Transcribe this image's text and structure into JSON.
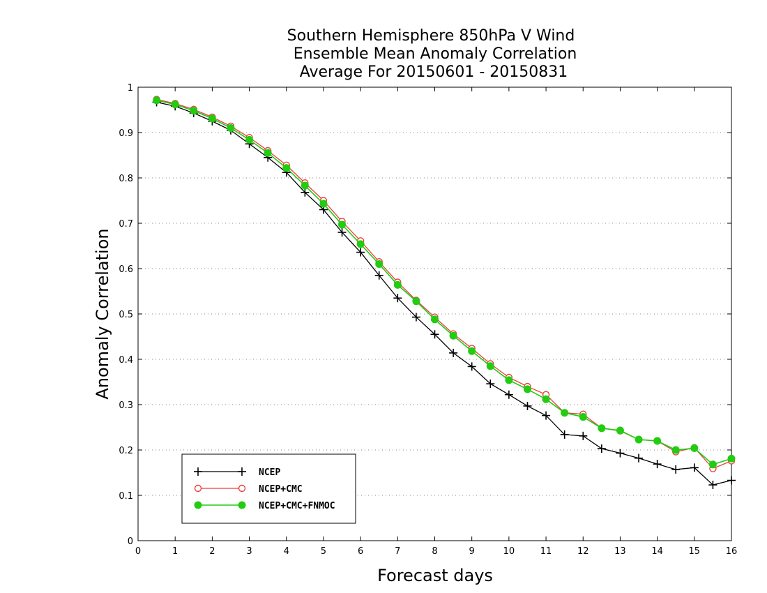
{
  "chart_data": {
    "type": "line",
    "title": [
      "Southern Hemisphere 850hPa V Wind",
      "Ensemble Mean Anomaly Correlation",
      "Average For 20150601 - 20150831"
    ],
    "xlabel": "Forecast days",
    "ylabel": "Anomaly Correlation",
    "xlim": [
      0,
      16
    ],
    "ylim": [
      0,
      1
    ],
    "xticks": [
      "0",
      "1",
      "2",
      "3",
      "4",
      "5",
      "6",
      "7",
      "8",
      "9",
      "10",
      "11",
      "12",
      "13",
      "14",
      "15",
      "16"
    ],
    "yticks": [
      "0",
      "0.1",
      "0.2",
      "0.3",
      "0.4",
      "0.5",
      "0.6",
      "0.7",
      "0.8",
      "0.9",
      "1"
    ],
    "grid": "horizontal dotted",
    "legend_position": "bottom-left",
    "x": [
      0.5,
      1,
      1.5,
      2,
      2.5,
      3,
      3.5,
      4,
      4.5,
      5,
      5.5,
      6,
      6.5,
      7,
      7.5,
      8,
      8.5,
      9,
      9.5,
      10,
      10.5,
      11,
      11.5,
      12,
      12.5,
      13,
      13.5,
      14,
      14.5,
      15,
      15.5,
      16
    ],
    "series": [
      {
        "name": "NCEP",
        "color": "#000000",
        "marker": "plus",
        "values": [
          0.967,
          0.958,
          0.943,
          0.925,
          0.905,
          0.875,
          0.845,
          0.812,
          0.768,
          0.73,
          0.68,
          0.636,
          0.585,
          0.535,
          0.493,
          0.455,
          0.414,
          0.384,
          0.346,
          0.322,
          0.297,
          0.276,
          0.234,
          0.231,
          0.203,
          0.193,
          0.182,
          0.169,
          0.157,
          0.161,
          0.123,
          0.133
        ]
      },
      {
        "name": "NCEP+CMC",
        "color": "#e8413c",
        "marker": "open-circle",
        "values": [
          0.973,
          0.964,
          0.951,
          0.934,
          0.914,
          0.889,
          0.86,
          0.828,
          0.789,
          0.75,
          0.704,
          0.661,
          0.615,
          0.57,
          0.53,
          0.493,
          0.456,
          0.424,
          0.39,
          0.36,
          0.34,
          0.322,
          0.282,
          0.279,
          0.248,
          0.242,
          0.223,
          0.22,
          0.196,
          0.205,
          0.159,
          0.176
        ]
      },
      {
        "name": "NCEP+CMC+FNMOC",
        "color": "#22cc11",
        "marker": "filled-circle",
        "values": [
          0.971,
          0.962,
          0.948,
          0.931,
          0.91,
          0.884,
          0.855,
          0.822,
          0.783,
          0.743,
          0.697,
          0.654,
          0.61,
          0.564,
          0.528,
          0.488,
          0.452,
          0.418,
          0.385,
          0.354,
          0.334,
          0.312,
          0.282,
          0.273,
          0.248,
          0.243,
          0.223,
          0.22,
          0.2,
          0.204,
          0.168,
          0.181
        ]
      }
    ]
  }
}
